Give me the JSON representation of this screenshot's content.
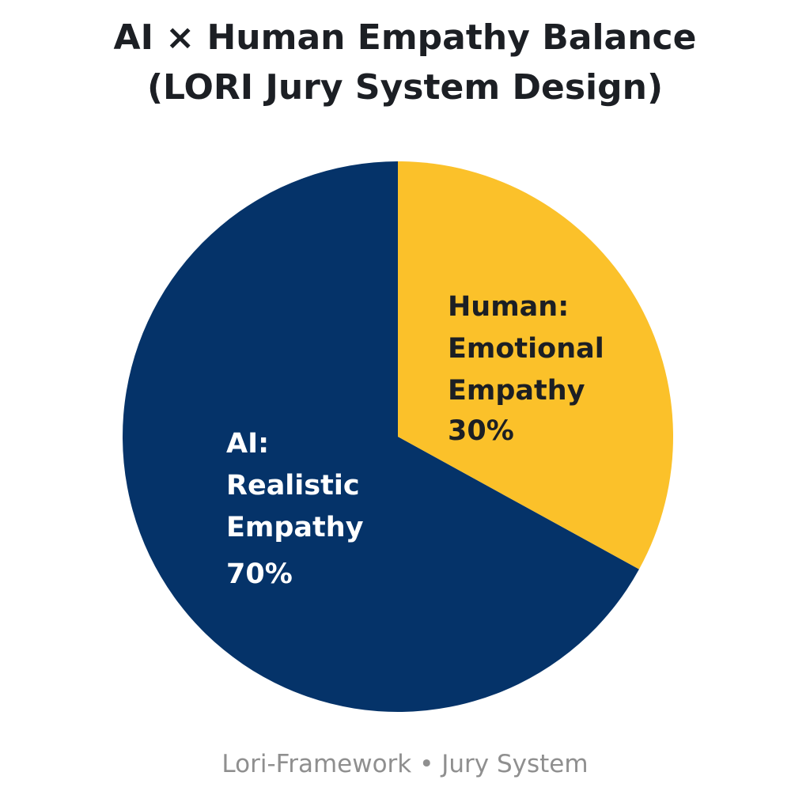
{
  "title": {
    "line1": "AI × Human Empathy Balance",
    "line2": "(LORI Jury System Design)"
  },
  "slices": {
    "human": {
      "line1": "Human:",
      "line2": "Emotional",
      "line3": "Empathy",
      "pct": "30%",
      "color": "#FBC12A"
    },
    "ai": {
      "line1": "AI:",
      "line2": "Realistic",
      "line3": "Empathy",
      "pct": "70%",
      "color": "#053369"
    }
  },
  "footer": "Lori-Framework • Jury System",
  "chart_data": {
    "type": "pie",
    "title": "AI × Human Empathy Balance (LORI Jury System Design)",
    "categories": [
      "Human: Emotional Empathy",
      "AI: Realistic Empathy"
    ],
    "values": [
      30,
      70
    ],
    "colors": [
      "#FBC12A",
      "#053369"
    ],
    "start_angle": "12 o'clock, clockwise",
    "legend": "none (labels inside slices)",
    "footer": "Lori-Framework • Jury System"
  }
}
